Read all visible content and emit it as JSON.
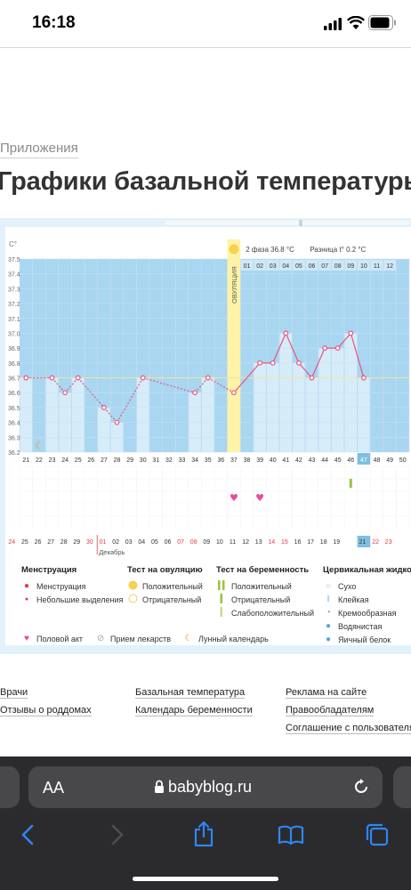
{
  "status": {
    "time": "16:18"
  },
  "breadcrumb": "Приложения",
  "page_title": "Графики базальной температуры",
  "chart_header": {
    "phase_label": "2 фаза",
    "phase_value": "36.8 °C",
    "diff_label": "Разница t°",
    "diff_value": "0.2 °C",
    "ovulation_label": "ОВУЛЯЦИЯ",
    "unit": "C°",
    "month_label": "Декабрь"
  },
  "chart_data": {
    "type": "line",
    "ylim": [
      36.2,
      37.5
    ],
    "y_ticks": [
      "37.5",
      "37.4",
      "37.3",
      "37.2",
      "37.1",
      "37.0",
      "36.9",
      "36.8",
      "36.7",
      "36.6",
      "36.5",
      "36.4",
      "36.3",
      "36.2"
    ],
    "cycle_days": [
      "21",
      "22",
      "23",
      "24",
      "25",
      "26",
      "27",
      "28",
      "29",
      "30",
      "31",
      "32",
      "33",
      "34",
      "35",
      "36",
      "37",
      "38",
      "39",
      "40",
      "41",
      "42",
      "43",
      "44",
      "45",
      "46",
      "47",
      "48",
      "49",
      "50"
    ],
    "phase2_days": [
      "01",
      "02",
      "03",
      "04",
      "05",
      "06",
      "07",
      "08",
      "09",
      "10",
      "11",
      "12"
    ],
    "dates": [
      "24",
      "25",
      "26",
      "27",
      "28",
      "29",
      "30",
      "01",
      "02",
      "03",
      "04",
      "05",
      "06",
      "07",
      "08",
      "09",
      "10",
      "11",
      "12",
      "13",
      "14",
      "15",
      "16",
      "17",
      "18",
      "19",
      "20",
      "21",
      "22",
      "23"
    ],
    "temperatures": [
      36.7,
      null,
      36.7,
      36.6,
      36.7,
      null,
      36.5,
      36.4,
      null,
      36.7,
      null,
      null,
      null,
      36.6,
      36.7,
      null,
      36.6,
      null,
      36.8,
      36.8,
      37.0,
      36.8,
      36.7,
      36.9,
      36.9,
      37.0,
      36.7,
      null,
      null,
      null
    ],
    "coverline": 36.7,
    "ovulation_day": "37",
    "today_day": "47",
    "today_date": "21",
    "moon_day": "22",
    "hearts_days": [
      "37",
      "39"
    ],
    "pregnancy_test_day": "46",
    "red_dates": [
      "24",
      "30",
      "01",
      "07",
      "08",
      "14",
      "15",
      "22",
      "23"
    ]
  },
  "legend": {
    "menstruation": {
      "title": "Менструация",
      "items": [
        "Менструация",
        "Небольшие выделения"
      ]
    },
    "ovulation_test": {
      "title": "Тест на овуляцию",
      "items": [
        "Положительный",
        "Отрицательный"
      ]
    },
    "pregnancy_test": {
      "title": "Тест на беременность",
      "items": [
        "Положительный",
        "Отрицательный",
        "Слабоположительный"
      ]
    },
    "cervical": {
      "title": "Цервикальная жидкость",
      "items": [
        "Сухо",
        "Клейкая",
        "Кремообразная",
        "Водянистая",
        "Яичный белок"
      ]
    },
    "bottom": [
      "Половой акт",
      "Прием лекарств",
      "Лунный календарь"
    ]
  },
  "colors": {
    "chart_blue": "#a9d6f0",
    "light_bar": "#d7ecf9",
    "line": "#e8557f",
    "ovulation": "#fff3a8",
    "today": "#7fbfe4",
    "red": "#e23b4a",
    "heart": "#e84a9c"
  },
  "footer": {
    "col1": [
      "Врачи",
      "Отзывы о роддомах"
    ],
    "col2": [
      "Базальная температура",
      "Календарь беременности"
    ],
    "col3": [
      "Реклама на сайте",
      "Правообладателям",
      "Соглашение с пользователями"
    ]
  },
  "browser": {
    "aa_label": "AA",
    "url": "babyblog.ru"
  }
}
